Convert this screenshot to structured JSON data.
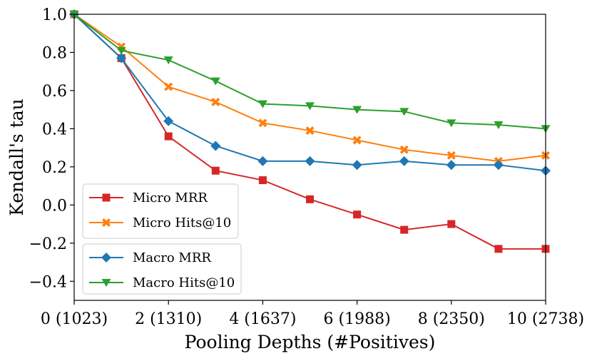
{
  "chart_data": {
    "type": "line",
    "xlabel": "Pooling Depths (#Positives)",
    "ylabel": "Kendall's tau",
    "xlim": [
      0,
      10
    ],
    "ylim": [
      -0.5,
      1.0
    ],
    "x": [
      0,
      1,
      2,
      3,
      4,
      5,
      6,
      7,
      8,
      9,
      10
    ],
    "x_ticks": [
      {
        "value": 0,
        "label": "0 (1023)"
      },
      {
        "value": 2,
        "label": "2 (1310)"
      },
      {
        "value": 4,
        "label": "4 (1637)"
      },
      {
        "value": 6,
        "label": "6 (1988)"
      },
      {
        "value": 8,
        "label": "8 (2350)"
      },
      {
        "value": 10,
        "label": "10 (2738)"
      }
    ],
    "y_ticks": [
      {
        "value": 1.0,
        "label": "1.0"
      },
      {
        "value": 0.8,
        "label": "0.8"
      },
      {
        "value": 0.6,
        "label": "0.6"
      },
      {
        "value": 0.4,
        "label": "0.4"
      },
      {
        "value": 0.2,
        "label": "0.2"
      },
      {
        "value": 0.0,
        "label": "0.0"
      },
      {
        "value": -0.2,
        "label": "−0.2"
      },
      {
        "value": -0.4,
        "label": "−0.4"
      }
    ],
    "grid": false,
    "series": [
      {
        "name": "Micro MRR",
        "color": "#d62728",
        "marker": "square",
        "values": [
          1.0,
          0.77,
          0.36,
          0.18,
          0.13,
          0.03,
          -0.05,
          -0.13,
          -0.1,
          -0.23,
          -0.23
        ]
      },
      {
        "name": "Micro Hits@10",
        "color": "#ff7f0e",
        "marker": "x",
        "values": [
          1.0,
          0.83,
          0.62,
          0.54,
          0.43,
          0.39,
          0.34,
          0.29,
          0.26,
          0.23,
          0.26
        ]
      },
      {
        "name": "Macro MRR",
        "color": "#1f77b4",
        "marker": "diamond",
        "values": [
          1.0,
          0.77,
          0.44,
          0.31,
          0.23,
          0.23,
          0.21,
          0.23,
          0.21,
          0.21,
          0.18
        ]
      },
      {
        "name": "Macro Hits@10",
        "color": "#2ca02c",
        "marker": "triangle-down",
        "values": [
          1.0,
          0.81,
          0.76,
          0.65,
          0.53,
          0.52,
          0.5,
          0.49,
          0.43,
          0.42,
          0.4
        ]
      }
    ],
    "legends": [
      {
        "placement": "bottom-left upper box",
        "series": [
          "Micro MRR",
          "Micro Hits@10"
        ]
      },
      {
        "placement": "bottom-left lower box",
        "series": [
          "Macro MRR",
          "Macro Hits@10"
        ]
      }
    ]
  }
}
